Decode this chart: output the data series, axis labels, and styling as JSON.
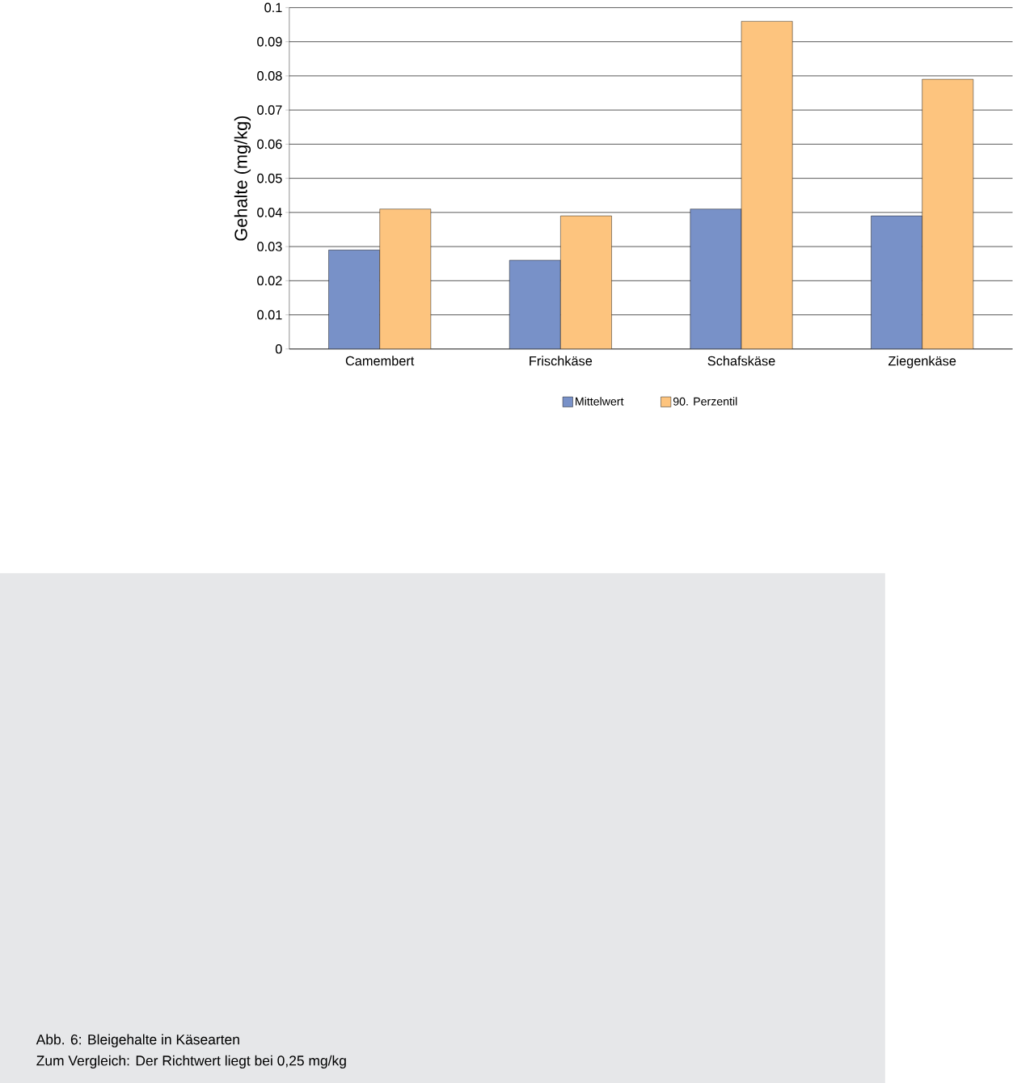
{
  "chart_data": {
    "type": "bar",
    "ylabel": "Gehalte (mg/kg)",
    "categories": [
      "Camembert",
      "Frischkäse",
      "Schafskäse",
      "Ziegenkäse"
    ],
    "series": [
      {
        "name": "Mittelwert",
        "color": "#7891c8",
        "values": [
          0.029,
          0.026,
          0.041,
          0.039
        ]
      },
      {
        "name": "90. Perzentil",
        "color": "#fdc47e",
        "values": [
          0.041,
          0.039,
          0.096,
          0.079
        ]
      }
    ],
    "ylim": [
      0,
      0.1
    ],
    "yticks": [
      0,
      0.01,
      0.02,
      0.03,
      0.04,
      0.05,
      0.06,
      0.07,
      0.08,
      0.09,
      0.1
    ],
    "grid": "y",
    "legend": "bottom",
    "annotations": [
      "Abb. 6: Bleigehalte in Käsearten",
      "Zum Vergleich: Der Richtwert liegt bei 0,25 mg/kg"
    ]
  }
}
